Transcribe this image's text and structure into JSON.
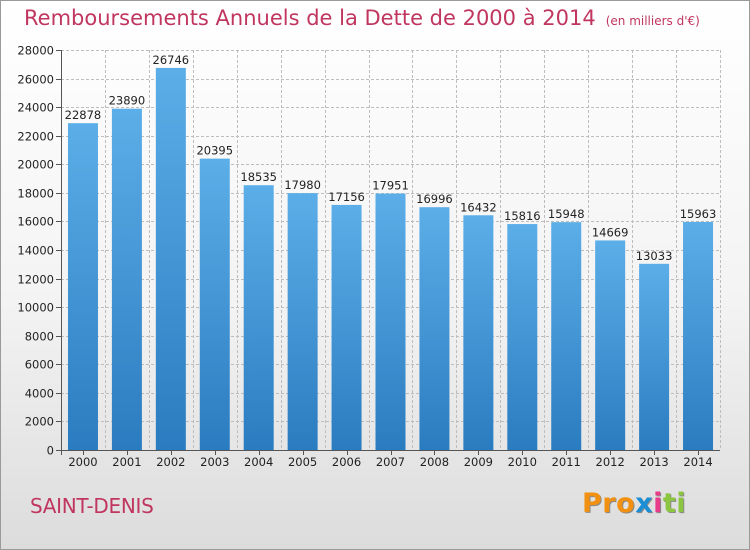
{
  "chart_data": {
    "type": "bar",
    "title": "Remboursements Annuels de la Dette de 2000 à 2014",
    "unit_note": "(en milliers d'€)",
    "categories": [
      "2000",
      "2001",
      "2002",
      "2003",
      "2004",
      "2005",
      "2006",
      "2007",
      "2008",
      "2009",
      "2010",
      "2011",
      "2012",
      "2013",
      "2014"
    ],
    "values": [
      22878,
      23890,
      26746,
      20395,
      18535,
      17980,
      17156,
      17951,
      16996,
      16432,
      15816,
      15948,
      14669,
      13033,
      15963
    ],
    "ylim": [
      0,
      28000
    ],
    "yticks": [
      0,
      2000,
      4000,
      6000,
      8000,
      10000,
      12000,
      14000,
      16000,
      18000,
      20000,
      22000,
      24000,
      26000,
      28000
    ],
    "xlabel": "",
    "ylabel": "",
    "grid": true
  },
  "footer": {
    "commune": "SAINT-DENIS",
    "logo_letters": [
      "P",
      "r",
      "o",
      "x",
      "i",
      "t",
      "i"
    ]
  },
  "colors": {
    "title": "#c0365f",
    "bar_top": "#5caee8",
    "bar_bottom": "#2a7cc0",
    "grid": "#bdbdbd",
    "logo": [
      "#f29111",
      "#f29111",
      "#f29111",
      "#1b8fd6",
      "#e83c8b",
      "#8cc63f",
      "#8cc63f"
    ]
  }
}
